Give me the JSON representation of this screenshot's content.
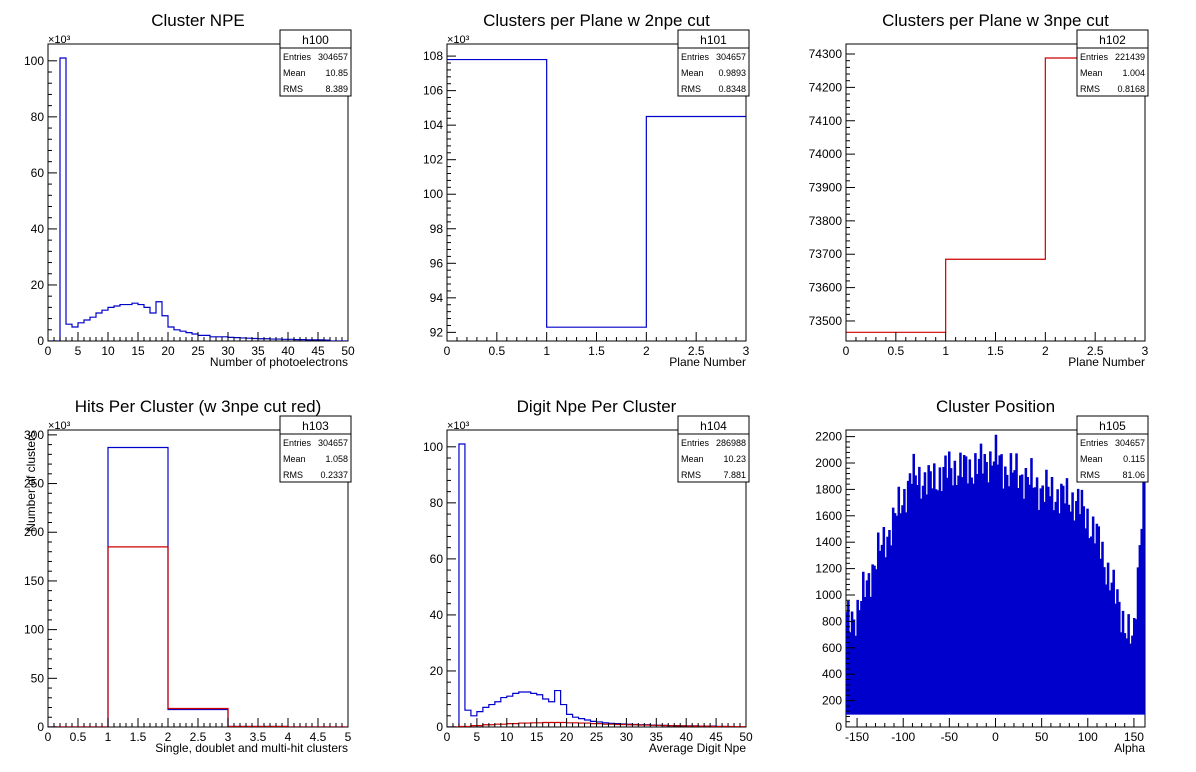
{
  "colors": {
    "blue": "#0000cc",
    "red": "#cc0000",
    "frame": "#000000",
    "background": "#ffffff"
  },
  "chart_data": [
    {
      "type": "histogram",
      "title": "Cluster NPE",
      "xlabel": "Number of photoelectrons",
      "ylabel": "",
      "exponent": "×10³",
      "xlim": [
        0,
        50
      ],
      "ylim": [
        0,
        106
      ],
      "xticks": [
        0,
        5,
        10,
        15,
        20,
        25,
        30,
        35,
        40,
        45,
        50
      ],
      "yticks": [
        0,
        20,
        40,
        60,
        80,
        100
      ],
      "stats": {
        "name": "h100",
        "rows": [
          {
            "label": "Entries",
            "value": "304657"
          },
          {
            "label": "Mean",
            "value": "10.85"
          },
          {
            "label": "RMS",
            "value": "8.389"
          }
        ]
      },
      "series": [
        {
          "color": "#0000cc",
          "edges": [
            0,
            1,
            2,
            3,
            4,
            5,
            6,
            7,
            8,
            9,
            10,
            11,
            12,
            13,
            14,
            15,
            16,
            17,
            18,
            19,
            20,
            21,
            22,
            23,
            24,
            25,
            26,
            27,
            28,
            29,
            30,
            31,
            32,
            33,
            34,
            35,
            36,
            37,
            38,
            39,
            40,
            41,
            42,
            43,
            44,
            45,
            46,
            47,
            48,
            49,
            50
          ],
          "values": [
            0,
            0,
            101,
            6,
            5,
            6.5,
            7.5,
            8.5,
            10,
            11,
            12,
            12.5,
            13,
            13,
            13.5,
            13,
            12,
            10,
            14,
            9,
            5,
            4,
            3.5,
            3,
            2.5,
            2,
            2,
            1.5,
            1.5,
            1.5,
            1.3,
            1.2,
            1.1,
            1,
            0.9,
            0.8,
            0.8,
            0.7,
            0.7,
            0.6,
            0.6,
            0.5,
            0.5,
            0.4,
            0.4,
            0.4,
            0.3,
            0,
            0,
            0
          ]
        }
      ]
    },
    {
      "type": "histogram",
      "title": "Clusters per Plane w 2npe cut",
      "xlabel": "Plane Number",
      "ylabel": "",
      "exponent": "×10³",
      "xlim": [
        0,
        3
      ],
      "ylim": [
        91.5,
        108.7
      ],
      "xticks": [
        0,
        0.5,
        1,
        1.5,
        2,
        2.5,
        3
      ],
      "yticks": [
        92,
        94,
        96,
        98,
        100,
        102,
        104,
        106,
        108
      ],
      "stats": {
        "name": "h101",
        "rows": [
          {
            "label": "Entries",
            "value": "304657"
          },
          {
            "label": "Mean",
            "value": "0.9893"
          },
          {
            "label": "RMS",
            "value": "0.8348"
          }
        ]
      },
      "series": [
        {
          "color": "#0000cc",
          "edges": [
            0,
            1,
            2,
            3
          ],
          "values": [
            107.8,
            92.3,
            104.5
          ]
        }
      ]
    },
    {
      "type": "histogram",
      "title": "Clusters per Plane w 3npe cut",
      "xlabel": "Plane Number",
      "ylabel": "",
      "exponent": "",
      "xlim": [
        0,
        3
      ],
      "ylim": [
        73440,
        74330
      ],
      "xticks": [
        0,
        0.5,
        1,
        1.5,
        2,
        2.5,
        3
      ],
      "yticks": [
        73500,
        73600,
        73700,
        73800,
        73900,
        74000,
        74100,
        74200,
        74300
      ],
      "stats": {
        "name": "h102",
        "rows": [
          {
            "label": "Entries",
            "value": "221439"
          },
          {
            "label": "Mean",
            "value": "1.004"
          },
          {
            "label": "RMS",
            "value": "0.8168"
          }
        ]
      },
      "series": [
        {
          "color": "#cc0000",
          "edges": [
            0,
            1,
            2,
            3
          ],
          "values": [
            73466,
            73685,
            74288
          ]
        }
      ]
    },
    {
      "type": "histogram",
      "title": "Hits Per Cluster (w 3npe cut red)",
      "xlabel": "Single, doublet and multi-hit clusters",
      "ylabel": "Number of clusters",
      "exponent": "×10³",
      "xlim": [
        0,
        5
      ],
      "ylim": [
        0,
        305
      ],
      "xticks": [
        0,
        0.5,
        1,
        1.5,
        2,
        2.5,
        3,
        3.5,
        4,
        4.5,
        5
      ],
      "yticks": [
        0,
        50,
        100,
        150,
        200,
        250,
        300
      ],
      "stats": {
        "name": "h103",
        "rows": [
          {
            "label": "Entries",
            "value": "304657"
          },
          {
            "label": "Mean",
            "value": "1.058"
          },
          {
            "label": "RMS",
            "value": "0.2337"
          }
        ]
      },
      "series": [
        {
          "color": "#0000cc",
          "edges": [
            0,
            1,
            2,
            3,
            4,
            5
          ],
          "values": [
            0,
            287,
            18,
            0.5,
            0
          ]
        },
        {
          "color": "#cc0000",
          "edges": [
            0,
            1,
            2,
            3,
            4,
            5
          ],
          "values": [
            0,
            185,
            19,
            0.5,
            0
          ]
        }
      ]
    },
    {
      "type": "histogram",
      "title": "Digit Npe Per Cluster",
      "xlabel": "Average Digit Npe",
      "ylabel": "",
      "exponent": "×10³",
      "xlim": [
        0,
        50
      ],
      "ylim": [
        0,
        106
      ],
      "xticks": [
        0,
        5,
        10,
        15,
        20,
        25,
        30,
        35,
        40,
        45,
        50
      ],
      "yticks": [
        0,
        20,
        40,
        60,
        80,
        100
      ],
      "stats": {
        "name": "h104",
        "rows": [
          {
            "label": "Entries",
            "value": "286988"
          },
          {
            "label": "Mean",
            "value": "10.23"
          },
          {
            "label": "RMS",
            "value": "7.881"
          }
        ]
      },
      "series": [
        {
          "color": "#0000cc",
          "edges": [
            0,
            1,
            2,
            3,
            4,
            5,
            6,
            7,
            8,
            9,
            10,
            11,
            12,
            13,
            14,
            15,
            16,
            17,
            18,
            19,
            20,
            21,
            22,
            23,
            24,
            25,
            26,
            27,
            28,
            29,
            30,
            31,
            32,
            33,
            34,
            35,
            36,
            37,
            38,
            39,
            40,
            41,
            42,
            43,
            44,
            45,
            46,
            47,
            48,
            49,
            50
          ],
          "values": [
            0,
            0,
            101,
            6,
            4,
            5.5,
            7,
            8,
            9,
            10.5,
            11,
            12,
            12.5,
            12.5,
            12,
            11.5,
            10,
            9,
            13,
            8,
            4.5,
            3.5,
            3,
            2.5,
            2,
            1.8,
            1.5,
            1.3,
            1.2,
            1.1,
            1,
            0.9,
            0.8,
            0.8,
            0.7,
            0.6,
            0.6,
            0.5,
            0.5,
            0.4,
            0.4,
            0.4,
            0.3,
            0.3,
            0.3,
            0.2,
            0.2,
            0,
            0,
            0
          ]
        },
        {
          "color": "#cc0000",
          "edges": [
            0,
            2,
            4,
            6,
            8,
            10,
            12,
            14,
            16,
            18,
            20,
            22,
            24,
            26,
            28,
            30,
            32,
            34,
            36,
            38,
            40,
            42,
            44,
            46,
            48,
            50
          ],
          "values": [
            0,
            0.2,
            0.5,
            0.8,
            1,
            1.2,
            1.4,
            1.5,
            1.6,
            1.6,
            1.5,
            1.4,
            1.2,
            1,
            0.9,
            0.8,
            0.7,
            0.6,
            0.5,
            0.4,
            0.3,
            0.3,
            0.2,
            0.2,
            0.1
          ]
        }
      ]
    },
    {
      "type": "histogram",
      "title": "Cluster Position",
      "xlabel": "Alpha",
      "ylabel": "",
      "exponent": "",
      "xlim": [
        -162,
        162
      ],
      "ylim": [
        0,
        2250
      ],
      "xticks": [
        -150,
        -100,
        -50,
        0,
        50,
        100,
        150
      ],
      "yticks": [
        0,
        200,
        400,
        600,
        800,
        1000,
        1200,
        1400,
        1600,
        1800,
        2000,
        2200
      ],
      "stats": {
        "name": "h105",
        "rows": [
          {
            "label": "Entries",
            "value": "304657"
          },
          {
            "label": "Mean",
            "value": "0.115"
          },
          {
            "label": "RMS",
            "value": "81.06"
          }
        ]
      },
      "series": [
        {
          "color": "#0000cc",
          "comb": true,
          "xmin": -162,
          "xmax": 162,
          "teeth": 160,
          "envelope_x": [
            -162,
            -150,
            -130,
            -110,
            -90,
            -70,
            -50,
            -30,
            -10,
            0,
            10,
            30,
            50,
            70,
            90,
            110,
            130,
            150,
            162
          ],
          "envelope_y": [
            800,
            850,
            1250,
            1550,
            1900,
            1850,
            1950,
            1950,
            2000,
            2050,
            1950,
            1900,
            1800,
            1750,
            1700,
            1450,
            1000,
            600,
            2000
          ],
          "base": 100
        }
      ]
    }
  ]
}
